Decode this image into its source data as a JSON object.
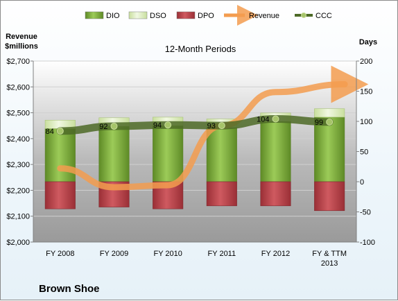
{
  "chart_data": {
    "type": "bar",
    "title": "12-Month Periods",
    "company": "Brown Shoe",
    "left_axis_label_lines": [
      "Revenue",
      "$millions"
    ],
    "right_axis_label": "Days",
    "categories": [
      [
        "FY 2008"
      ],
      [
        "FY 2009"
      ],
      [
        "FY 2010"
      ],
      [
        "FY 2011"
      ],
      [
        "FY 2012"
      ],
      [
        "FY & TTM",
        "2013"
      ]
    ],
    "left_ylim": [
      2000,
      2700
    ],
    "left_ticks": [
      "$2,000",
      "$2,100",
      "$2,200",
      "$2,300",
      "$2,400",
      "$2,500",
      "$2,600",
      "$2,700"
    ],
    "left_tick_values": [
      2000,
      2100,
      2200,
      2300,
      2400,
      2500,
      2600,
      2700
    ],
    "right_ylim": [
      -100,
      200
    ],
    "right_ticks": [
      "-100",
      "-50",
      "0",
      "50",
      "100",
      "150",
      "200"
    ],
    "right_tick_values": [
      -100,
      -50,
      0,
      50,
      100,
      150,
      200
    ],
    "legend": {
      "position": "top",
      "items": [
        {
          "key": "dio",
          "label": "DIO",
          "color": "#76a33a"
        },
        {
          "key": "dso",
          "label": "DSO",
          "color": "#dcedc0"
        },
        {
          "key": "dpo",
          "label": "DPO",
          "color": "#b8434a"
        },
        {
          "key": "revenue",
          "label": "Revenue",
          "color": "#f39c4f"
        },
        {
          "key": "ccc",
          "label": "CCC",
          "color": "#5f7a33"
        }
      ]
    },
    "series": [
      {
        "name": "DIO",
        "axis": "right",
        "values": [
          88,
          92,
          93,
          90,
          100,
          107
        ]
      },
      {
        "name": "DSO",
        "axis": "right",
        "values": [
          14,
          14,
          14,
          14,
          14,
          14
        ]
      },
      {
        "name": "DPO",
        "axis": "right",
        "values": [
          -45,
          -42,
          -45,
          -40,
          -40,
          -48
        ]
      },
      {
        "name": "Revenue",
        "axis": "left",
        "values": [
          2285,
          2212,
          2220,
          2450,
          2580,
          2610
        ]
      },
      {
        "name": "CCC",
        "axis": "right",
        "values": [
          84,
          92,
          94,
          93,
          104,
          99
        ],
        "labels": [
          "84",
          "92",
          "94",
          "93",
          "104",
          "99"
        ]
      }
    ],
    "grid": true
  }
}
